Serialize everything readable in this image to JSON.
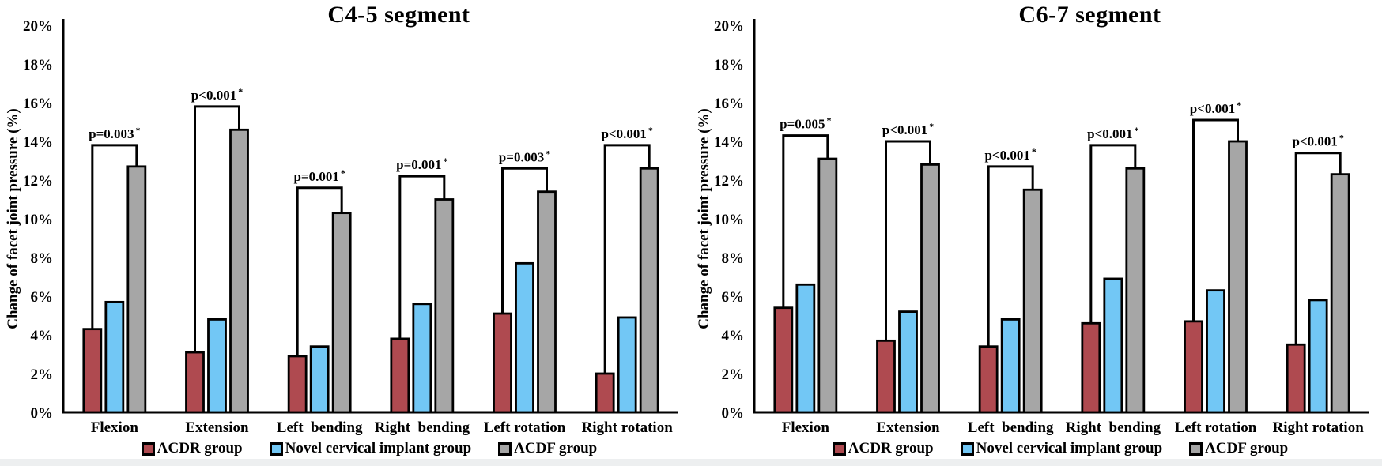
{
  "figure": {
    "background": "#ffffff",
    "footer_strip_color": "#edeff0",
    "axis_color": "#000000",
    "text_color": "#000000"
  },
  "chart_data": [
    {
      "type": "bar",
      "title": "C4-5 segment",
      "xlabel": "",
      "ylabel": "Change of facet joint pressure (%)",
      "ylim": [
        0,
        20
      ],
      "ytick_step": 2,
      "ytick_suffix": "%",
      "grid": false,
      "legend_position": "bottom",
      "categories": [
        "Flexion",
        "Extension",
        "Left  bending",
        "Right  bending",
        "Left rotation",
        "Right rotation"
      ],
      "series": [
        {
          "name": "ACDR group",
          "color": "#AF4A50",
          "values": [
            4.3,
            3.1,
            2.9,
            3.8,
            5.1,
            2.0
          ]
        },
        {
          "name": "Novel cervical implant group",
          "color": "#72C7F5",
          "values": [
            5.7,
            4.8,
            3.4,
            5.6,
            7.7,
            4.9
          ]
        },
        {
          "name": "ACDF group",
          "color": "#A6A6A6",
          "values": [
            12.7,
            14.6,
            10.3,
            11.0,
            11.4,
            12.6
          ]
        }
      ],
      "significance": [
        {
          "label": "p=0.003",
          "star": "*",
          "bracket_top": 13.8,
          "from_series": "ACDR group",
          "to_series": "ACDF group"
        },
        {
          "label": "p<0.001",
          "star": "*",
          "bracket_top": 15.8,
          "from_series": "ACDR group",
          "to_series": "ACDF group"
        },
        {
          "label": "p=0.001",
          "star": "*",
          "bracket_top": 11.6,
          "from_series": "ACDR group",
          "to_series": "ACDF group"
        },
        {
          "label": "p=0.001",
          "star": "*",
          "bracket_top": 12.2,
          "from_series": "ACDR group",
          "to_series": "ACDF group"
        },
        {
          "label": "p=0.003",
          "star": "*",
          "bracket_top": 12.6,
          "from_series": "ACDR group",
          "to_series": "ACDF group"
        },
        {
          "label": "p<0.001",
          "star": "*",
          "bracket_top": 13.8,
          "from_series": "ACDR group",
          "to_series": "ACDF group"
        }
      ]
    },
    {
      "type": "bar",
      "title": "C6-7 segment",
      "xlabel": "",
      "ylabel": "Change of facet joint pressure (%)",
      "ylim": [
        0,
        20
      ],
      "ytick_step": 2,
      "ytick_suffix": "%",
      "grid": false,
      "legend_position": "bottom",
      "categories": [
        "Flexion",
        "Extension",
        "Left  bending",
        "Right  bending",
        "Left rotation",
        "Right rotation"
      ],
      "series": [
        {
          "name": "ACDR group",
          "color": "#AF4A50",
          "values": [
            5.4,
            3.7,
            3.4,
            4.6,
            4.7,
            3.5
          ]
        },
        {
          "name": "Novel cervical implant group",
          "color": "#72C7F5",
          "values": [
            6.6,
            5.2,
            4.8,
            6.9,
            6.3,
            5.8
          ]
        },
        {
          "name": "ACDF group",
          "color": "#A6A6A6",
          "values": [
            13.1,
            12.8,
            11.5,
            12.6,
            14.0,
            12.3
          ]
        }
      ],
      "significance": [
        {
          "label": "p=0.005",
          "star": "*",
          "bracket_top": 14.3,
          "from_series": "ACDR group",
          "to_series": "ACDF group"
        },
        {
          "label": "p<0.001",
          "star": "*",
          "bracket_top": 14.0,
          "from_series": "ACDR group",
          "to_series": "ACDF group"
        },
        {
          "label": "p<0.001",
          "star": "*",
          "bracket_top": 12.7,
          "from_series": "ACDR group",
          "to_series": "ACDF group"
        },
        {
          "label": "p<0.001",
          "star": "*",
          "bracket_top": 13.8,
          "from_series": "ACDR group",
          "to_series": "ACDF group"
        },
        {
          "label": "p<0.001",
          "star": "*",
          "bracket_top": 15.1,
          "from_series": "ACDR group",
          "to_series": "ACDF group"
        },
        {
          "label": "p<0.001",
          "star": "*",
          "bracket_top": 13.4,
          "from_series": "ACDR group",
          "to_series": "ACDF group"
        }
      ]
    }
  ]
}
